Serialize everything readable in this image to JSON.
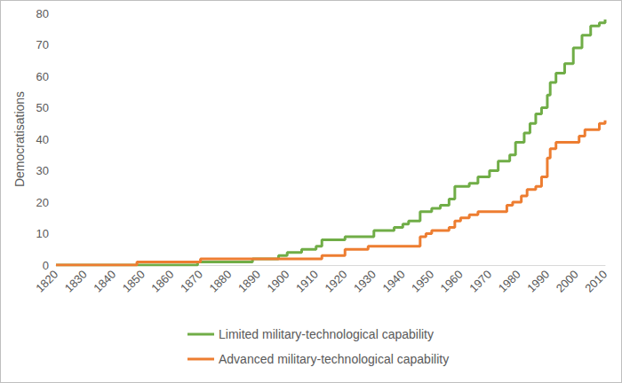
{
  "chart_data": {
    "type": "line",
    "y_label": "Democratisations",
    "x": [
      1820,
      1848,
      1869,
      1870,
      1888,
      1897,
      1900,
      1905,
      1910,
      1912,
      1920,
      1928,
      1930,
      1937,
      1940,
      1942,
      1946,
      1948,
      1950,
      1953,
      1956,
      1958,
      1960,
      1963,
      1966,
      1970,
      1973,
      1976,
      1977,
      1978,
      1979,
      1981,
      1982,
      1983,
      1984,
      1986,
      1988,
      1990,
      1991,
      1993,
      1996,
      1999,
      2001,
      2002,
      2003,
      2005,
      2008,
      2010
    ],
    "series": [
      {
        "name": "Limited military-technological capability",
        "color": "#70ad47",
        "line_style": "step",
        "values": [
          0,
          0,
          1,
          1,
          2,
          3,
          4,
          5,
          6,
          8,
          9,
          9,
          11,
          12,
          13,
          14,
          17,
          17,
          18,
          19,
          21,
          25,
          25,
          26,
          28,
          30,
          33,
          33,
          35,
          35,
          39,
          39,
          42,
          42,
          45,
          48,
          50,
          54,
          58,
          61,
          64,
          69,
          69,
          73,
          73,
          76,
          77,
          78
        ]
      },
      {
        "name": "Advanced military-technological capability",
        "color": "#ed7d31",
        "line_style": "step",
        "values": [
          0,
          1,
          1,
          2,
          2,
          2,
          2,
          2,
          2,
          3,
          5,
          6,
          6,
          6,
          6,
          6,
          9,
          10,
          11,
          11,
          12,
          14,
          15,
          16,
          17,
          17,
          17,
          19,
          19,
          20,
          20,
          22,
          22,
          24,
          24,
          25,
          28,
          34,
          37,
          39,
          39,
          39,
          41,
          41,
          43,
          43,
          45,
          46
        ]
      }
    ],
    "xlim": [
      1820,
      2010
    ],
    "xticks": [
      1820,
      1830,
      1840,
      1850,
      1860,
      1870,
      1880,
      1890,
      1900,
      1910,
      1920,
      1930,
      1940,
      1950,
      1960,
      1970,
      1980,
      1990,
      2000,
      2010
    ],
    "ylim": [
      0,
      80
    ],
    "yticks": [
      0,
      10,
      20,
      30,
      40,
      50,
      60,
      70,
      80
    ],
    "grid": false,
    "legend": "bottom"
  }
}
